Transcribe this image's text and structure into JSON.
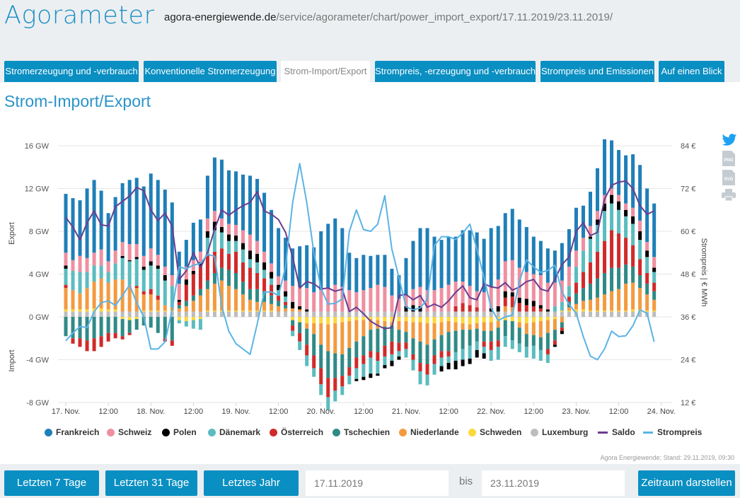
{
  "header": {
    "brand": "Agorameter",
    "url_domain": "agora-energiewende.de",
    "url_path": "/service/agorameter/chart/power_import_export/17.11.2019/23.11.2019/"
  },
  "tabs": [
    {
      "label": "Stromerzeugung und -verbrauch",
      "active": false
    },
    {
      "label": "Konventionelle Stromerzeugung",
      "active": false
    },
    {
      "label": "Strom-Import/Export",
      "active": true
    },
    {
      "label": "Strompreis, -erzeugung und -verbrauch",
      "active": false
    },
    {
      "label": "Strompreis und Emissionen",
      "active": false
    },
    {
      "label": "Auf einen Blick",
      "active": false
    }
  ],
  "page_title": "Strom-Import/Export",
  "side_icons": [
    "twitter-icon",
    "png-download-icon",
    "svg-download-icon",
    "print-icon"
  ],
  "side_icon_labels": {
    "png": "PNG",
    "svg": "SVG"
  },
  "credit": "Agora Energiewende; Stand: 29.11.2019, 09:30",
  "controls": {
    "last7": "Letzten 7 Tage",
    "last31": "Letzten 31 Tage",
    "lastyear": "Letztes Jahr",
    "from": "17.11.2019",
    "bis": "bis",
    "to": "23.11.2019",
    "submit": "Zeitraum darstellen"
  },
  "chart_data": {
    "type": "bar",
    "stacked": true,
    "x_start": "17.11.2019 00:00",
    "x_step": "2 h",
    "x_ticks": [
      "17. Nov.",
      "12:00",
      "18. Nov.",
      "12:00",
      "19. Nov.",
      "12:00",
      "20. Nov.",
      "12:00",
      "21. Nov.",
      "12:00",
      "22. Nov.",
      "12:00",
      "23. Nov.",
      "12:00",
      "24. Nov."
    ],
    "y_left": {
      "ticks": [
        "-8 GW",
        "-4 GW",
        "0 GW",
        "4 GW",
        "8 GW",
        "12 GW",
        "16 GW"
      ],
      "range": [
        -8,
        16
      ],
      "label_top": "Export",
      "label_bottom": "Import"
    },
    "y_right": {
      "ticks": [
        "12 €",
        "24 €",
        "36 €",
        "48 €",
        "60 €",
        "72 €",
        "84 €"
      ],
      "range": [
        12,
        84
      ],
      "label": "Strompreis | € MWh"
    },
    "grid": true,
    "legend_position": "bottom",
    "series": [
      {
        "name": "Frankreich",
        "kind": "bar",
        "color": "#1f7fb8",
        "values": [
          5.5,
          5.8,
          5.2,
          6.5,
          6.8,
          5.5,
          4.5,
          5,
          5.5,
          6,
          6.2,
          6.5,
          7,
          7,
          7.2,
          6.8,
          3,
          2.5,
          3.5,
          3,
          4,
          5,
          5.5,
          5,
          5,
          5.2,
          5.5,
          5.8,
          5.5,
          5,
          4.5,
          4,
          3.5,
          3.8,
          4,
          4.2,
          5.5,
          6,
          6.2,
          5.5,
          3.5,
          3.2,
          3.3,
          3,
          2.8,
          3,
          2.5,
          2.2,
          3.5,
          4.5,
          5.5,
          5.8,
          5,
          4.5,
          4.5,
          4.2,
          4.8,
          5.2,
          5.5,
          5,
          5.5,
          5,
          4.5,
          4.8,
          4.5,
          4.2,
          3.5,
          3.2,
          3.2,
          3,
          3.5,
          3.5,
          4,
          3,
          3.2,
          4,
          5.2,
          4.5,
          4.2,
          4.5,
          5,
          5.2,
          5,
          5
        ]
      },
      {
        "name": "Schweiz",
        "kind": "bar",
        "color": "#ef8fa0",
        "values": [
          1.2,
          1.0,
          1.5,
          1.3,
          1.2,
          1.5,
          1.0,
          1.2,
          1.3,
          1.5,
          1.2,
          1.0,
          1.2,
          1.0,
          0.8,
          1.0,
          1.5,
          1.2,
          1.0,
          1.0,
          1.2,
          1.0,
          0.8,
          1.0,
          1.0,
          1.2,
          1.5,
          1.2,
          1.0,
          0.8,
          0.8,
          1.0,
          1.5,
          1.8,
          2.0,
          1.8,
          2.0,
          2.2,
          2.5,
          2.3,
          2.0,
          1.8,
          2.0,
          2.2,
          2.5,
          2.3,
          1.5,
          1.2,
          1.0,
          1.5,
          1.8,
          2.0,
          2.0,
          2.2,
          2.5,
          2.3,
          2.0,
          1.8,
          1.5,
          1.8,
          2.0,
          2.5,
          2.8,
          3.0,
          2.8,
          2.5,
          2.5,
          2.8,
          2.5,
          2.2,
          2.0,
          1.8,
          1.5,
          1.2,
          1.0,
          0.8,
          0.8,
          0.6,
          0.6,
          0.6,
          0.8,
          1.0,
          0.8,
          1.0
        ]
      },
      {
        "name": "Polen",
        "kind": "bar",
        "color": "#000000",
        "values": [
          0.3,
          0,
          0,
          0,
          0,
          0,
          0,
          0,
          0.2,
          0.1,
          0.2,
          0.3,
          0.4,
          0.3,
          0.5,
          0,
          0.2,
          0.5,
          0.3,
          0.3,
          0.6,
          0.8,
          0.5,
          0.6,
          0.5,
          0.6,
          0.8,
          0.8,
          0.7,
          0.6,
          0.5,
          0.5,
          0.6,
          0.3,
          0.2,
          0,
          0,
          0,
          0,
          0,
          0,
          -0.2,
          -0.3,
          -0.4,
          -0.2,
          -0.3,
          -0.5,
          -0.3,
          0.5,
          0.6,
          0.5,
          0,
          0,
          -0.5,
          -0.6,
          -0.8,
          -0.6,
          -0.5,
          -0.7,
          -0.5,
          0.3,
          0.5,
          0.6,
          0.4,
          0.5,
          0.6,
          0.5,
          0.3,
          0.2,
          -0.2,
          -0.3,
          0,
          0,
          0,
          0.2,
          0.5,
          0.7,
          0.8,
          0.8,
          0.6,
          0.7,
          0.8,
          0.6,
          0.4
        ]
      },
      {
        "name": "Dänemark",
        "kind": "bar",
        "color": "#5bbcbf",
        "values": [
          1.5,
          1.8,
          2,
          1.5,
          1.5,
          1.2,
          1.0,
          1.5,
          2.0,
          2.2,
          2.5,
          2.0,
          2.2,
          2.5,
          2.3,
          2.0,
          -0.3,
          -0.5,
          -0.8,
          -1.0,
          1.5,
          2.0,
          1.5,
          1.2,
          1.0,
          1.2,
          0.8,
          1.0,
          0.8,
          0.6,
          0.5,
          0.5,
          -0.5,
          -0.8,
          -1.0,
          -0.8,
          -1.0,
          -1.2,
          -1.0,
          -0.8,
          -0.8,
          -1.0,
          -1.2,
          -1.5,
          -1.2,
          -0.8,
          -0.6,
          -0.5,
          -0.8,
          -1.0,
          -1.2,
          -1.0,
          -1.0,
          -0.8,
          -0.6,
          -0.8,
          -1.0,
          -1.2,
          -0.8,
          -0.6,
          -1.0,
          -1.2,
          -1.0,
          -0.8,
          -0.8,
          -1.0,
          -1.2,
          -1.0,
          -0.8,
          0.5,
          0.8,
          1.0,
          1.5,
          2.0,
          2.2,
          2.5,
          2.8,
          2.5,
          2.2,
          2.0,
          2.0,
          1.8,
          1.5,
          1.0
        ]
      },
      {
        "name": "Österreich",
        "kind": "bar",
        "color": "#d12a2a",
        "values": [
          0.3,
          -0.5,
          -0.8,
          -1.0,
          -1.2,
          -1.0,
          -0.8,
          -0.5,
          -0.3,
          -0.2,
          0.2,
          0.3,
          0.5,
          0.4,
          -0.3,
          -0.5,
          0.3,
          1.5,
          2.0,
          2.2,
          2.5,
          2.0,
          1.8,
          1.5,
          2.0,
          1.8,
          2.0,
          1.5,
          1.2,
          1.0,
          0.5,
          0.3,
          -0.5,
          -0.8,
          -1.0,
          -1.2,
          -1.5,
          -1.8,
          -1.2,
          -1.0,
          -0.8,
          -1.0,
          -0.8,
          -0.6,
          -0.8,
          -1.0,
          -1.2,
          -0.8,
          -0.6,
          -0.5,
          -0.8,
          -1.0,
          -0.8,
          -0.6,
          -0.5,
          0.5,
          0.8,
          0.6,
          0.4,
          -0.5,
          -0.8,
          -0.6,
          0.8,
          1.0,
          0.8,
          0.6,
          0.5,
          0.3,
          -0.5,
          -0.4,
          -0.3,
          0.5,
          1.0,
          1.5,
          2.0,
          2.5,
          3.0,
          3.5,
          3.2,
          2.5,
          2.0,
          1.5,
          1.0,
          0.8
        ]
      },
      {
        "name": "Tschechien",
        "kind": "bar",
        "color": "#2f8a86",
        "values": [
          -1.8,
          -2.0,
          -2.0,
          -2.2,
          -2.0,
          -1.8,
          -1.5,
          -1.5,
          -1.6,
          -1.2,
          -1.0,
          -0.8,
          -1.0,
          -1.5,
          -2.0,
          -2.2,
          0.3,
          0.5,
          0.5,
          0.6,
          0.8,
          1.0,
          1.2,
          1.5,
          1.5,
          1.2,
          1.0,
          1.2,
          1.0,
          0.8,
          0.5,
          0.3,
          -0.5,
          -1.0,
          -1.5,
          -2.0,
          -2.2,
          -2.5,
          -2.3,
          -2.0,
          -1.8,
          -1.5,
          -1.8,
          -2.0,
          -2.2,
          -1.8,
          -1.5,
          -1.2,
          -1.0,
          -1.5,
          -2.0,
          -1.8,
          -1.5,
          -1.5,
          -1.8,
          -2.0,
          -1.8,
          -1.5,
          -1.2,
          -1.0,
          -1.0,
          -1.2,
          -1.5,
          -1.8,
          -1.5,
          -1.2,
          -1.0,
          -1.2,
          -1.5,
          -1.0,
          -0.5,
          0.5,
          1.0,
          1.2,
          1.5,
          1.8,
          2.0,
          2.2,
          2.0,
          1.8,
          1.5,
          1.2,
          1.0,
          0.8
        ]
      },
      {
        "name": "Niederlande",
        "kind": "bar",
        "color": "#f39a3f",
        "values": [
          2.0,
          1.8,
          1.5,
          2.0,
          2.5,
          2.8,
          2.5,
          2.8,
          3.0,
          2.5,
          2.2,
          1.5,
          1.5,
          1.0,
          0.5,
          0.3,
          0.3,
          0.5,
          1.0,
          1.5,
          2.0,
          2.5,
          2.8,
          2.3,
          2.0,
          1.5,
          1.0,
          0.8,
          0.8,
          0.6,
          0.5,
          0.3,
          0.3,
          0.2,
          -0.5,
          -1.0,
          -2.0,
          -2.5,
          -2.8,
          -3.0,
          -2.5,
          -2.0,
          -1.5,
          -1.0,
          -0.8,
          -0.5,
          -0.3,
          -0.8,
          -1.0,
          -1.5,
          -1.8,
          -2.0,
          -1.5,
          -1.2,
          -1.0,
          -0.8,
          -0.6,
          -0.5,
          -0.5,
          -0.8,
          -0.8,
          -0.6,
          0.5,
          0.4,
          -0.5,
          -1.0,
          -1.2,
          -1.5,
          -1.2,
          -1.0,
          -0.5,
          0.3,
          0.5,
          0.8,
          1.0,
          1.2,
          1.5,
          1.8,
          2.0,
          2.5,
          2.5,
          2.0,
          1.5,
          1.0
        ]
      },
      {
        "name": "Schweden",
        "kind": "bar",
        "color": "#fcd83c",
        "values": [
          0.2,
          0.2,
          0.2,
          0.2,
          0.3,
          0.3,
          0.2,
          0.2,
          -0.2,
          -0.3,
          -0.2,
          0.1,
          0.1,
          0.1,
          0.1,
          0.1,
          -0.3,
          -0.4,
          -0.3,
          -0.2,
          0.1,
          0.1,
          0.1,
          0.1,
          0.1,
          0.1,
          0.1,
          0.1,
          0.1,
          0.1,
          0,
          0,
          -0.3,
          -0.5,
          -0.6,
          -0.6,
          -0.6,
          -0.7,
          -0.6,
          -0.5,
          -0.4,
          -0.3,
          -0.3,
          -0.2,
          -0.3,
          -0.4,
          -0.5,
          -0.4,
          -0.4,
          -0.5,
          -0.5,
          -0.6,
          -0.6,
          -0.5,
          -0.4,
          -0.5,
          -0.6,
          -0.7,
          -0.6,
          -0.5,
          -0.5,
          -0.4,
          -0.3,
          -0.4,
          -0.5,
          -0.6,
          -0.5,
          -0.4,
          -0.3,
          -0.2,
          0.1,
          0.1,
          0.2,
          0.2,
          0.1,
          0.1,
          0.1,
          0.1,
          0.1,
          0.1,
          0.2,
          0.2,
          0.1,
          0.1
        ]
      },
      {
        "name": "Luxemburg",
        "kind": "bar",
        "color": "#bdbdbd",
        "values": [
          0.5,
          0.5,
          0.5,
          0.5,
          0.5,
          0.5,
          0.5,
          0.5,
          0.5,
          0.5,
          0.5,
          0.5,
          0.5,
          0.5,
          0.5,
          0.5,
          0.5,
          0.5,
          0.5,
          0.5,
          0.5,
          0.5,
          0.5,
          0.5,
          0.5,
          0.5,
          0.5,
          0.5,
          0.5,
          0.5,
          0.5,
          0.5,
          0.5,
          0.5,
          0.5,
          0.5,
          0.5,
          0.5,
          0.5,
          0.5,
          0.5,
          0.5,
          0.5,
          0.5,
          0.5,
          0.5,
          0.5,
          0.5,
          0.5,
          0.5,
          0.5,
          0.5,
          0.5,
          0.5,
          0.5,
          0.5,
          0.5,
          0.5,
          0.5,
          0.5,
          0.5,
          0.5,
          0.5,
          0.5,
          0.5,
          0.5,
          0.5,
          0.5,
          0.5,
          0.5,
          0.5,
          0.5,
          0.5,
          0.5,
          0.5,
          0.5,
          0.5,
          0.5,
          0.5,
          0.5,
          0.5,
          0.5,
          0.5,
          0.5
        ]
      },
      {
        "name": "Saldo",
        "kind": "line",
        "axis": "left",
        "color": "#6a3d8f",
        "values": [
          9.3,
          8.4,
          7.2,
          8.8,
          9.9,
          8.6,
          8.5,
          10.3,
          10.8,
          11.3,
          12.1,
          11.8,
          10.0,
          9.0,
          9.7,
          8.5,
          3.5,
          4.3,
          6.0,
          4.6,
          6.0,
          8.2,
          10.0,
          9.5,
          10.0,
          10.4,
          10.7,
          11.7,
          9.9,
          9.6,
          9.1,
          7.9,
          5.6,
          2.7,
          3.3,
          3.1,
          2.6,
          2.7,
          2.4,
          2.6,
          0.5,
          0.9,
          0.3,
          -0.4,
          -0.8,
          -1.1,
          -1.0,
          2.0,
          2.1,
          1.6,
          2.0,
          0.9,
          1.2,
          0.9,
          1.5,
          2.3,
          2.9,
          1.8,
          1.6,
          3.1,
          2.8,
          2.7,
          3.2,
          2.5,
          2.8,
          3.3,
          3.5,
          2.6,
          2.4,
          3.5,
          4.9,
          5.6,
          8.0,
          8.8,
          7.6,
          7.9,
          11.0,
          12.3,
          12.6,
          12.7,
          12.0,
          10.4,
          9.6,
          9.9
        ]
      },
      {
        "name": "Strompreis",
        "kind": "line",
        "axis": "right",
        "color": "#5ab4e5",
        "values": [
          29.3,
          31.5,
          33.3,
          33,
          37.5,
          40,
          40.5,
          39.2,
          42,
          45,
          40,
          36,
          27,
          27,
          29,
          38,
          50,
          49.5,
          50.5,
          51,
          53.5,
          53,
          39,
          32,
          28.5,
          27,
          25.5,
          34,
          43,
          43,
          42,
          50,
          68,
          79,
          68,
          54,
          44,
          39.6,
          39.8,
          41,
          60,
          66,
          60.5,
          60,
          62,
          70,
          55,
          47,
          38.8,
          38,
          38.5,
          41,
          56,
          58.5,
          58.5,
          57.7,
          59.5,
          62,
          55,
          47,
          38.5,
          35,
          36,
          36.5,
          46,
          52,
          50,
          48.5,
          49,
          50.5,
          43,
          39.5,
          37,
          30.5,
          25,
          24,
          27,
          32,
          30.5,
          30.7,
          33.5,
          38,
          37,
          29
        ]
      }
    ]
  }
}
